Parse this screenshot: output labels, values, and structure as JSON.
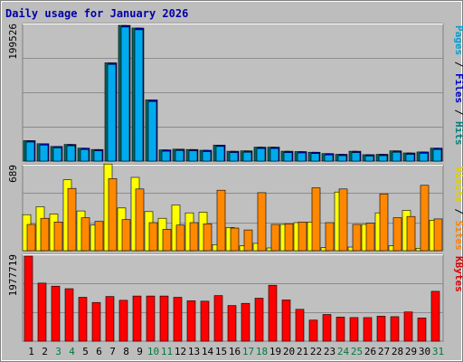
{
  "chart_data": {
    "type": "bar",
    "title": "Daily usage for January 2026",
    "categories": [
      "1",
      "2",
      "3",
      "4",
      "5",
      "6",
      "7",
      "8",
      "9",
      "10",
      "11",
      "12",
      "13",
      "14",
      "15",
      "16",
      "17",
      "18",
      "19",
      "20",
      "21",
      "22",
      "23",
      "24",
      "25",
      "26",
      "27",
      "28",
      "29",
      "30",
      "31"
    ],
    "weekend_days": [
      "3",
      "4",
      "10",
      "11",
      "17",
      "18",
      "24",
      "25",
      "31"
    ],
    "panels": [
      {
        "name": "pages-files-hits",
        "max_label": "199526",
        "ylim": [
          0,
          199526
        ],
        "series_labels": [
          {
            "text": "Pages",
            "color": "#00a0d0"
          },
          {
            "text": "Files",
            "color": "#0000cc"
          },
          {
            "text": "Hits",
            "color": "#008080"
          }
        ],
        "series": [
          {
            "name": "Hits",
            "color": "#006666",
            "values": [
              30000,
              25500,
              21500,
              24500,
              19000,
              17000,
              144500,
              199500,
              195500,
              90000,
              16500,
              17500,
              17000,
              16000,
              23500,
              14500,
              15000,
              20500,
              20500,
              14500,
              14000,
              13000,
              11000,
              10000,
              14500,
              9500,
              10000,
              15000,
              12000,
              13500,
              19000
            ]
          },
          {
            "name": "Files",
            "color": "#0000cc",
            "values": [
              30000,
              25500,
              21500,
              24500,
              19000,
              17000,
              144500,
              199500,
              195500,
              90000,
              16500,
              17500,
              17000,
              16000,
              23500,
              14500,
              15000,
              20500,
              20500,
              14500,
              14000,
              13000,
              11000,
              10000,
              14500,
              9500,
              10000,
              15000,
              12000,
              13500,
              19000
            ]
          },
          {
            "name": "Pages",
            "color": "#00aaee",
            "values": [
              28000,
              23500,
              19500,
              22500,
              17000,
              15000,
              142000,
              197000,
              193000,
              87500,
              14500,
              15500,
              15000,
              14000,
              21500,
              12500,
              13000,
              18500,
              18500,
              12500,
              12000,
              11000,
              9000,
              8000,
              12500,
              7500,
              8000,
              13000,
              10000,
              11500,
              17000
            ]
          }
        ]
      },
      {
        "name": "visits-sites",
        "max_label": "689",
        "ylim": [
          0,
          689
        ],
        "series_labels": [
          {
            "text": "Visits",
            "color": "#e0d000"
          },
          {
            "text": "Sites",
            "color": "#ff8000"
          }
        ],
        "series": [
          {
            "name": "Visits",
            "color": "#ffff00",
            "values": [
              295,
              360,
              300,
              580,
              325,
              210,
              710,
              350,
              600,
              320,
              265,
              375,
              310,
              315,
              50,
              190,
              40,
              60,
              22,
              215,
              230,
              235,
              25,
              480,
              30,
              215,
              310,
              40,
              330,
              20,
              250
            ]
          },
          {
            "name": "Sites",
            "color": "#ff8800",
            "values": [
              215,
              265,
              235,
              510,
              270,
              240,
              590,
              255,
              505,
              230,
              175,
              210,
              230,
              220,
              495,
              185,
              170,
              475,
              215,
              220,
              235,
              515,
              230,
              505,
              215,
              225,
              465,
              270,
              280,
              535,
              260
            ]
          }
        ]
      },
      {
        "name": "kbytes",
        "max_label": "1977719",
        "ylim": [
          0,
          1977719
        ],
        "series_labels": [
          {
            "text": "KBytes",
            "color": "#e00000"
          }
        ],
        "series": [
          {
            "name": "KBytes",
            "color": "#ff0000",
            "values": [
              1977719,
              1350000,
              1280000,
              1220000,
              1020000,
              900000,
              1040000,
              950000,
              1050000,
              1050000,
              1050000,
              1020000,
              940000,
              930000,
              1060000,
              830000,
              880000,
              1000000,
              1300000,
              960000,
              740000,
              490000,
              620000,
              560000,
              550000,
              550000,
              580000,
              570000,
              680000,
              540000,
              1160000
            ]
          }
        ]
      }
    ]
  }
}
